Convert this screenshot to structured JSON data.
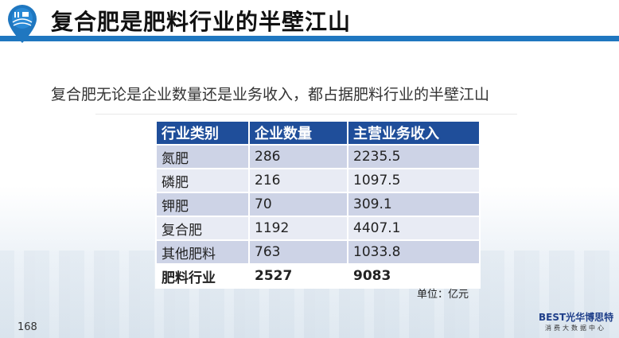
{
  "header": {
    "title": "复合肥是肥料行业的半壁江山",
    "accent_color": "#1f77c0"
  },
  "subtitle": "复合肥无论是企业数量还是业务收入，都占据肥料行业的半壁江山",
  "table": {
    "columns": [
      "行业类别",
      "企业数量",
      "主营业务收入"
    ],
    "rows": [
      [
        "氮肥",
        "286",
        "2235.5"
      ],
      [
        "磷肥",
        "216",
        "1097.5"
      ],
      [
        "钾肥",
        "70",
        "309.1"
      ],
      [
        "复合肥",
        "1192",
        "4407.1"
      ],
      [
        "其他肥料",
        "763",
        "1033.8"
      ]
    ],
    "total": [
      "肥料行业",
      "2527",
      "9083"
    ],
    "header_color": "#1f4e9a"
  },
  "unit": "单位：亿元",
  "page_number": "168",
  "logo": {
    "brand": "BEST光华博思特",
    "tagline": "消费大数据中心"
  }
}
